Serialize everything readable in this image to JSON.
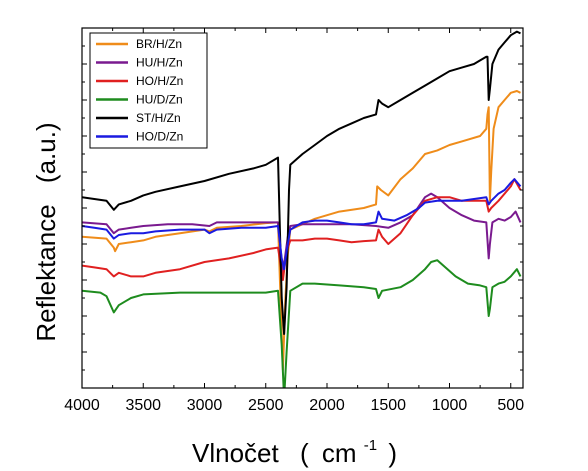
{
  "chart_data": {
    "type": "line",
    "xlabel": "Vlnočet",
    "xlabel_unit_base": "cm",
    "xlabel_unit_exp": "-1",
    "xlabel_parens": [
      "(",
      ")"
    ],
    "ylabel": "Reflektance",
    "ylabel_unit": "(a.u.)",
    "xlim": [
      4000,
      400
    ],
    "x_reversed": true,
    "ylim": [
      0,
      100
    ],
    "x_ticks": [
      4000,
      3500,
      3000,
      2500,
      2000,
      1500,
      1000,
      500
    ],
    "y_tick_labels_shown": false,
    "grid": false,
    "legend_position": "top-left",
    "series": [
      {
        "name": "BR/H/Zn",
        "color": "#ef8c1a",
        "points": [
          [
            4000,
            42
          ],
          [
            3800,
            41.5
          ],
          [
            3740,
            39
          ],
          [
            3730,
            38
          ],
          [
            3700,
            40
          ],
          [
            3600,
            40.5
          ],
          [
            3500,
            41
          ],
          [
            3400,
            42
          ],
          [
            3200,
            43
          ],
          [
            3000,
            44
          ],
          [
            2960,
            43.5
          ],
          [
            2900,
            44.5
          ],
          [
            2700,
            45
          ],
          [
            2500,
            45.8
          ],
          [
            2400,
            46
          ],
          [
            2360,
            5
          ],
          [
            2340,
            25
          ],
          [
            2320,
            37
          ],
          [
            2300,
            44
          ],
          [
            2200,
            45.5
          ],
          [
            2100,
            47
          ],
          [
            2000,
            48
          ],
          [
            1900,
            49
          ],
          [
            1700,
            50
          ],
          [
            1600,
            51
          ],
          [
            1590,
            56
          ],
          [
            1560,
            55
          ],
          [
            1500,
            53.5
          ],
          [
            1400,
            58
          ],
          [
            1300,
            61
          ],
          [
            1200,
            65
          ],
          [
            1100,
            66
          ],
          [
            1000,
            67.5
          ],
          [
            900,
            68.5
          ],
          [
            750,
            70
          ],
          [
            700,
            72
          ],
          [
            690,
            76
          ],
          [
            680,
            78
          ],
          [
            670,
            52
          ],
          [
            660,
            60
          ],
          [
            640,
            72
          ],
          [
            600,
            78
          ],
          [
            550,
            80
          ],
          [
            500,
            82
          ],
          [
            450,
            82.5
          ],
          [
            420,
            82
          ]
        ]
      },
      {
        "name": "HU/H/Zn",
        "color": "#7a1a8f",
        "points": [
          [
            4000,
            46
          ],
          [
            3800,
            45.5
          ],
          [
            3740,
            43
          ],
          [
            3700,
            44
          ],
          [
            3600,
            44.5
          ],
          [
            3500,
            45
          ],
          [
            3300,
            45.5
          ],
          [
            3100,
            45.5
          ],
          [
            2960,
            45
          ],
          [
            2900,
            46
          ],
          [
            2700,
            46
          ],
          [
            2500,
            46
          ],
          [
            2400,
            46
          ],
          [
            2360,
            32
          ],
          [
            2320,
            42
          ],
          [
            2300,
            45
          ],
          [
            2200,
            45.5
          ],
          [
            2000,
            45.5
          ],
          [
            1800,
            45.5
          ],
          [
            1600,
            45
          ],
          [
            1500,
            44.5
          ],
          [
            1400,
            46
          ],
          [
            1300,
            48
          ],
          [
            1200,
            53
          ],
          [
            1150,
            54
          ],
          [
            1100,
            53
          ],
          [
            1000,
            50
          ],
          [
            900,
            48
          ],
          [
            800,
            46.5
          ],
          [
            700,
            46
          ],
          [
            680,
            36
          ],
          [
            670,
            40
          ],
          [
            650,
            46
          ],
          [
            600,
            47
          ],
          [
            550,
            46.5
          ],
          [
            500,
            47.5
          ],
          [
            460,
            49
          ],
          [
            420,
            46
          ]
        ]
      },
      {
        "name": "HO/H/Zn",
        "color": "#e02020",
        "points": [
          [
            4000,
            34
          ],
          [
            3900,
            33.5
          ],
          [
            3800,
            33
          ],
          [
            3740,
            31
          ],
          [
            3700,
            32
          ],
          [
            3600,
            31
          ],
          [
            3500,
            31
          ],
          [
            3400,
            32
          ],
          [
            3200,
            33
          ],
          [
            3000,
            35
          ],
          [
            2800,
            36
          ],
          [
            2600,
            37.5
          ],
          [
            2500,
            38.5
          ],
          [
            2400,
            39
          ],
          [
            2360,
            30
          ],
          [
            2330,
            38
          ],
          [
            2300,
            41
          ],
          [
            2200,
            41
          ],
          [
            2100,
            41.5
          ],
          [
            2000,
            41.5
          ],
          [
            1900,
            41
          ],
          [
            1800,
            40.5
          ],
          [
            1700,
            40.8
          ],
          [
            1600,
            41
          ],
          [
            1580,
            44
          ],
          [
            1550,
            42
          ],
          [
            1500,
            40
          ],
          [
            1400,
            43
          ],
          [
            1300,
            48
          ],
          [
            1200,
            52
          ],
          [
            1100,
            53
          ],
          [
            1000,
            53
          ],
          [
            900,
            52
          ],
          [
            800,
            52
          ],
          [
            700,
            52
          ],
          [
            680,
            49
          ],
          [
            660,
            50
          ],
          [
            600,
            52
          ],
          [
            500,
            56
          ],
          [
            470,
            58
          ],
          [
            420,
            55
          ]
        ]
      },
      {
        "name": "HU/D/Zn",
        "color": "#1e8c1e",
        "points": [
          [
            4000,
            27
          ],
          [
            3850,
            26.5
          ],
          [
            3800,
            25.5
          ],
          [
            3740,
            21
          ],
          [
            3700,
            23
          ],
          [
            3600,
            25
          ],
          [
            3500,
            26
          ],
          [
            3200,
            26.5
          ],
          [
            3000,
            26.5
          ],
          [
            2800,
            26.5
          ],
          [
            2600,
            26.5
          ],
          [
            2500,
            26.5
          ],
          [
            2400,
            27
          ],
          [
            2370,
            12
          ],
          [
            2350,
            -3
          ],
          [
            2330,
            10
          ],
          [
            2300,
            27
          ],
          [
            2200,
            29
          ],
          [
            2100,
            29
          ],
          [
            1900,
            28.5
          ],
          [
            1700,
            28
          ],
          [
            1600,
            27.5
          ],
          [
            1580,
            25
          ],
          [
            1550,
            27
          ],
          [
            1400,
            28
          ],
          [
            1300,
            30
          ],
          [
            1200,
            33
          ],
          [
            1150,
            35
          ],
          [
            1100,
            35.5
          ],
          [
            1050,
            34
          ],
          [
            950,
            31
          ],
          [
            850,
            29
          ],
          [
            750,
            28.5
          ],
          [
            700,
            28
          ],
          [
            680,
            20
          ],
          [
            670,
            22
          ],
          [
            650,
            28
          ],
          [
            600,
            29
          ],
          [
            550,
            29.5
          ],
          [
            500,
            31
          ],
          [
            450,
            33
          ],
          [
            420,
            31
          ]
        ]
      },
      {
        "name": "ST/H/Zn",
        "color": "#000000",
        "points": [
          [
            4000,
            53
          ],
          [
            3900,
            52.5
          ],
          [
            3800,
            52
          ],
          [
            3740,
            49.5
          ],
          [
            3700,
            51
          ],
          [
            3600,
            52
          ],
          [
            3500,
            53.5
          ],
          [
            3400,
            54.5
          ],
          [
            3200,
            56
          ],
          [
            3000,
            57.5
          ],
          [
            2800,
            59.5
          ],
          [
            2600,
            61
          ],
          [
            2500,
            62
          ],
          [
            2400,
            64
          ],
          [
            2370,
            25
          ],
          [
            2350,
            15
          ],
          [
            2330,
            28
          ],
          [
            2310,
            55
          ],
          [
            2300,
            62
          ],
          [
            2200,
            65
          ],
          [
            2100,
            67.5
          ],
          [
            2000,
            70
          ],
          [
            1900,
            72
          ],
          [
            1800,
            73.5
          ],
          [
            1700,
            75
          ],
          [
            1600,
            76
          ],
          [
            1580,
            80
          ],
          [
            1550,
            79
          ],
          [
            1500,
            78
          ],
          [
            1400,
            80
          ],
          [
            1300,
            82
          ],
          [
            1200,
            84
          ],
          [
            1100,
            86
          ],
          [
            1000,
            88
          ],
          [
            900,
            89
          ],
          [
            800,
            90
          ],
          [
            750,
            91
          ],
          [
            700,
            92
          ],
          [
            690,
            92
          ],
          [
            680,
            80
          ],
          [
            670,
            83
          ],
          [
            650,
            90
          ],
          [
            600,
            94
          ],
          [
            550,
            96
          ],
          [
            500,
            98
          ],
          [
            450,
            99
          ],
          [
            420,
            98.5
          ]
        ]
      },
      {
        "name": "HO/D/Zn",
        "color": "#1a1ae0",
        "points": [
          [
            4000,
            45
          ],
          [
            3900,
            44.5
          ],
          [
            3800,
            44
          ],
          [
            3740,
            41.5
          ],
          [
            3700,
            42.5
          ],
          [
            3600,
            43
          ],
          [
            3500,
            43
          ],
          [
            3400,
            43.5
          ],
          [
            3200,
            44
          ],
          [
            3000,
            44
          ],
          [
            2960,
            43
          ],
          [
            2900,
            44
          ],
          [
            2700,
            44.5
          ],
          [
            2500,
            44.5
          ],
          [
            2400,
            45
          ],
          [
            2370,
            36
          ],
          [
            2350,
            33
          ],
          [
            2330,
            38
          ],
          [
            2300,
            44
          ],
          [
            2200,
            46
          ],
          [
            2100,
            46.5
          ],
          [
            2000,
            46.5
          ],
          [
            1900,
            46
          ],
          [
            1800,
            45.5
          ],
          [
            1700,
            45.5
          ],
          [
            1600,
            46
          ],
          [
            1580,
            49
          ],
          [
            1550,
            47
          ],
          [
            1450,
            46.5
          ],
          [
            1350,
            48
          ],
          [
            1250,
            50
          ],
          [
            1200,
            51.5
          ],
          [
            1100,
            52
          ],
          [
            1000,
            52
          ],
          [
            900,
            52
          ],
          [
            800,
            52.5
          ],
          [
            700,
            53
          ],
          [
            680,
            51
          ],
          [
            660,
            52
          ],
          [
            600,
            54
          ],
          [
            550,
            55
          ],
          [
            500,
            57
          ],
          [
            470,
            58
          ],
          [
            420,
            56
          ]
        ]
      }
    ]
  }
}
